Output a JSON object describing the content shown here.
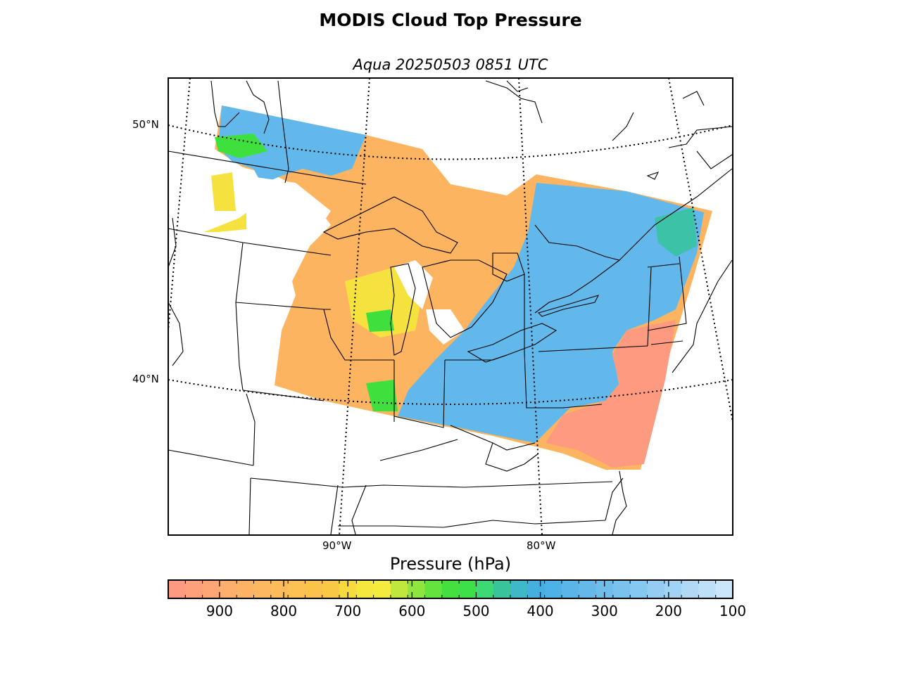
{
  "title": "MODIS Cloud Top Pressure",
  "subtitle": "Aqua 20250503 0851 UTC",
  "map": {
    "lat_labels": [
      "50°N",
      "40°N"
    ],
    "lon_labels": [
      "90°W",
      "80°W"
    ],
    "colors": {
      "low": "#fe9a80",
      "low_mid": "#fdb460",
      "mid": "#f6e23f",
      "green": "#3fe03e",
      "teal": "#3cc2a6",
      "high": "#62b8ea",
      "very_high": "#aed7f8"
    }
  },
  "colorbar": {
    "label": "Pressure (hPa)",
    "ticks": [
      "900",
      "800",
      "700",
      "600",
      "500",
      "400",
      "300",
      "200",
      "100"
    ],
    "range": [
      980,
      100
    ],
    "segment_colors": [
      "#fe9a80",
      "#fea07a",
      "#fea774",
      "#feae6d",
      "#fdb266",
      "#fdb760",
      "#fdbc5a",
      "#fcc053",
      "#fcc34c",
      "#f9c844",
      "#f8da3e",
      "#f6e73e",
      "#f3ec3e",
      "#bfe73e",
      "#8ee53e",
      "#66e23e",
      "#45df3f",
      "#3ee04a",
      "#3ed874",
      "#3ac49c",
      "#41b8c8",
      "#45b0e0",
      "#4fb2e6",
      "#5ab5e8",
      "#64b9ea",
      "#6ebdeb",
      "#79c2ee",
      "#85c8f0",
      "#93cdf2",
      "#a1d3f4",
      "#b0d9f6",
      "#bedff8",
      "#cbe5fa"
    ]
  }
}
